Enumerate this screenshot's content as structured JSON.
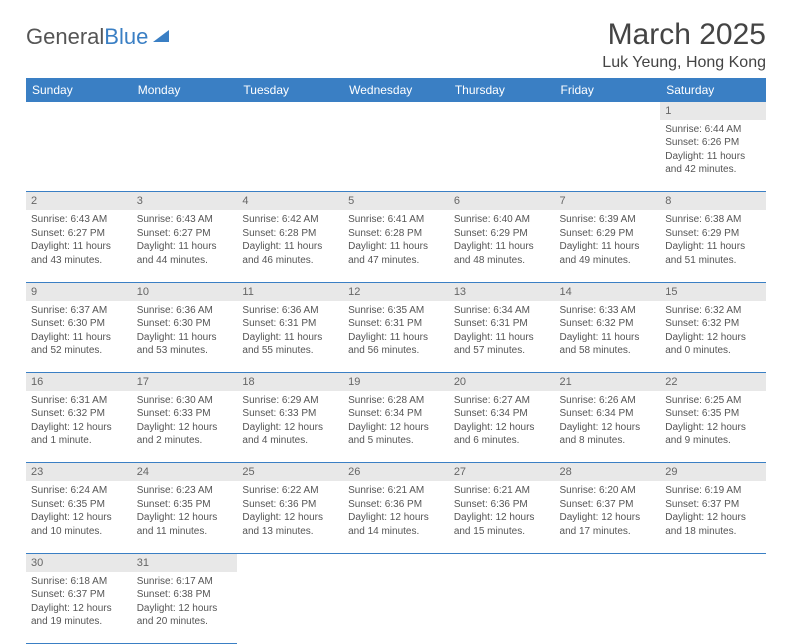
{
  "logo": {
    "text1": "General",
    "text2": "Blue",
    "sail_color": "#3a7fc4"
  },
  "title": "March 2025",
  "location": "Luk Yeung, Hong Kong",
  "header_bg": "#3a7fc4",
  "header_fg": "#ffffff",
  "daynum_bg": "#e8e8e8",
  "border_color": "#3a7fc4",
  "weekdays": [
    "Sunday",
    "Monday",
    "Tuesday",
    "Wednesday",
    "Thursday",
    "Friday",
    "Saturday"
  ],
  "days": {
    "1": {
      "sunrise": "Sunrise: 6:44 AM",
      "sunset": "Sunset: 6:26 PM",
      "daylight": "Daylight: 11 hours and 42 minutes."
    },
    "2": {
      "sunrise": "Sunrise: 6:43 AM",
      "sunset": "Sunset: 6:27 PM",
      "daylight": "Daylight: 11 hours and 43 minutes."
    },
    "3": {
      "sunrise": "Sunrise: 6:43 AM",
      "sunset": "Sunset: 6:27 PM",
      "daylight": "Daylight: 11 hours and 44 minutes."
    },
    "4": {
      "sunrise": "Sunrise: 6:42 AM",
      "sunset": "Sunset: 6:28 PM",
      "daylight": "Daylight: 11 hours and 46 minutes."
    },
    "5": {
      "sunrise": "Sunrise: 6:41 AM",
      "sunset": "Sunset: 6:28 PM",
      "daylight": "Daylight: 11 hours and 47 minutes."
    },
    "6": {
      "sunrise": "Sunrise: 6:40 AM",
      "sunset": "Sunset: 6:29 PM",
      "daylight": "Daylight: 11 hours and 48 minutes."
    },
    "7": {
      "sunrise": "Sunrise: 6:39 AM",
      "sunset": "Sunset: 6:29 PM",
      "daylight": "Daylight: 11 hours and 49 minutes."
    },
    "8": {
      "sunrise": "Sunrise: 6:38 AM",
      "sunset": "Sunset: 6:29 PM",
      "daylight": "Daylight: 11 hours and 51 minutes."
    },
    "9": {
      "sunrise": "Sunrise: 6:37 AM",
      "sunset": "Sunset: 6:30 PM",
      "daylight": "Daylight: 11 hours and 52 minutes."
    },
    "10": {
      "sunrise": "Sunrise: 6:36 AM",
      "sunset": "Sunset: 6:30 PM",
      "daylight": "Daylight: 11 hours and 53 minutes."
    },
    "11": {
      "sunrise": "Sunrise: 6:36 AM",
      "sunset": "Sunset: 6:31 PM",
      "daylight": "Daylight: 11 hours and 55 minutes."
    },
    "12": {
      "sunrise": "Sunrise: 6:35 AM",
      "sunset": "Sunset: 6:31 PM",
      "daylight": "Daylight: 11 hours and 56 minutes."
    },
    "13": {
      "sunrise": "Sunrise: 6:34 AM",
      "sunset": "Sunset: 6:31 PM",
      "daylight": "Daylight: 11 hours and 57 minutes."
    },
    "14": {
      "sunrise": "Sunrise: 6:33 AM",
      "sunset": "Sunset: 6:32 PM",
      "daylight": "Daylight: 11 hours and 58 minutes."
    },
    "15": {
      "sunrise": "Sunrise: 6:32 AM",
      "sunset": "Sunset: 6:32 PM",
      "daylight": "Daylight: 12 hours and 0 minutes."
    },
    "16": {
      "sunrise": "Sunrise: 6:31 AM",
      "sunset": "Sunset: 6:32 PM",
      "daylight": "Daylight: 12 hours and 1 minute."
    },
    "17": {
      "sunrise": "Sunrise: 6:30 AM",
      "sunset": "Sunset: 6:33 PM",
      "daylight": "Daylight: 12 hours and 2 minutes."
    },
    "18": {
      "sunrise": "Sunrise: 6:29 AM",
      "sunset": "Sunset: 6:33 PM",
      "daylight": "Daylight: 12 hours and 4 minutes."
    },
    "19": {
      "sunrise": "Sunrise: 6:28 AM",
      "sunset": "Sunset: 6:34 PM",
      "daylight": "Daylight: 12 hours and 5 minutes."
    },
    "20": {
      "sunrise": "Sunrise: 6:27 AM",
      "sunset": "Sunset: 6:34 PM",
      "daylight": "Daylight: 12 hours and 6 minutes."
    },
    "21": {
      "sunrise": "Sunrise: 6:26 AM",
      "sunset": "Sunset: 6:34 PM",
      "daylight": "Daylight: 12 hours and 8 minutes."
    },
    "22": {
      "sunrise": "Sunrise: 6:25 AM",
      "sunset": "Sunset: 6:35 PM",
      "daylight": "Daylight: 12 hours and 9 minutes."
    },
    "23": {
      "sunrise": "Sunrise: 6:24 AM",
      "sunset": "Sunset: 6:35 PM",
      "daylight": "Daylight: 12 hours and 10 minutes."
    },
    "24": {
      "sunrise": "Sunrise: 6:23 AM",
      "sunset": "Sunset: 6:35 PM",
      "daylight": "Daylight: 12 hours and 11 minutes."
    },
    "25": {
      "sunrise": "Sunrise: 6:22 AM",
      "sunset": "Sunset: 6:36 PM",
      "daylight": "Daylight: 12 hours and 13 minutes."
    },
    "26": {
      "sunrise": "Sunrise: 6:21 AM",
      "sunset": "Sunset: 6:36 PM",
      "daylight": "Daylight: 12 hours and 14 minutes."
    },
    "27": {
      "sunrise": "Sunrise: 6:21 AM",
      "sunset": "Sunset: 6:36 PM",
      "daylight": "Daylight: 12 hours and 15 minutes."
    },
    "28": {
      "sunrise": "Sunrise: 6:20 AM",
      "sunset": "Sunset: 6:37 PM",
      "daylight": "Daylight: 12 hours and 17 minutes."
    },
    "29": {
      "sunrise": "Sunrise: 6:19 AM",
      "sunset": "Sunset: 6:37 PM",
      "daylight": "Daylight: 12 hours and 18 minutes."
    },
    "30": {
      "sunrise": "Sunrise: 6:18 AM",
      "sunset": "Sunset: 6:37 PM",
      "daylight": "Daylight: 12 hours and 19 minutes."
    },
    "31": {
      "sunrise": "Sunrise: 6:17 AM",
      "sunset": "Sunset: 6:38 PM",
      "daylight": "Daylight: 12 hours and 20 minutes."
    }
  },
  "grid": [
    [
      null,
      null,
      null,
      null,
      null,
      null,
      "1"
    ],
    [
      "2",
      "3",
      "4",
      "5",
      "6",
      "7",
      "8"
    ],
    [
      "9",
      "10",
      "11",
      "12",
      "13",
      "14",
      "15"
    ],
    [
      "16",
      "17",
      "18",
      "19",
      "20",
      "21",
      "22"
    ],
    [
      "23",
      "24",
      "25",
      "26",
      "27",
      "28",
      "29"
    ],
    [
      "30",
      "31",
      null,
      null,
      null,
      null,
      null
    ]
  ]
}
